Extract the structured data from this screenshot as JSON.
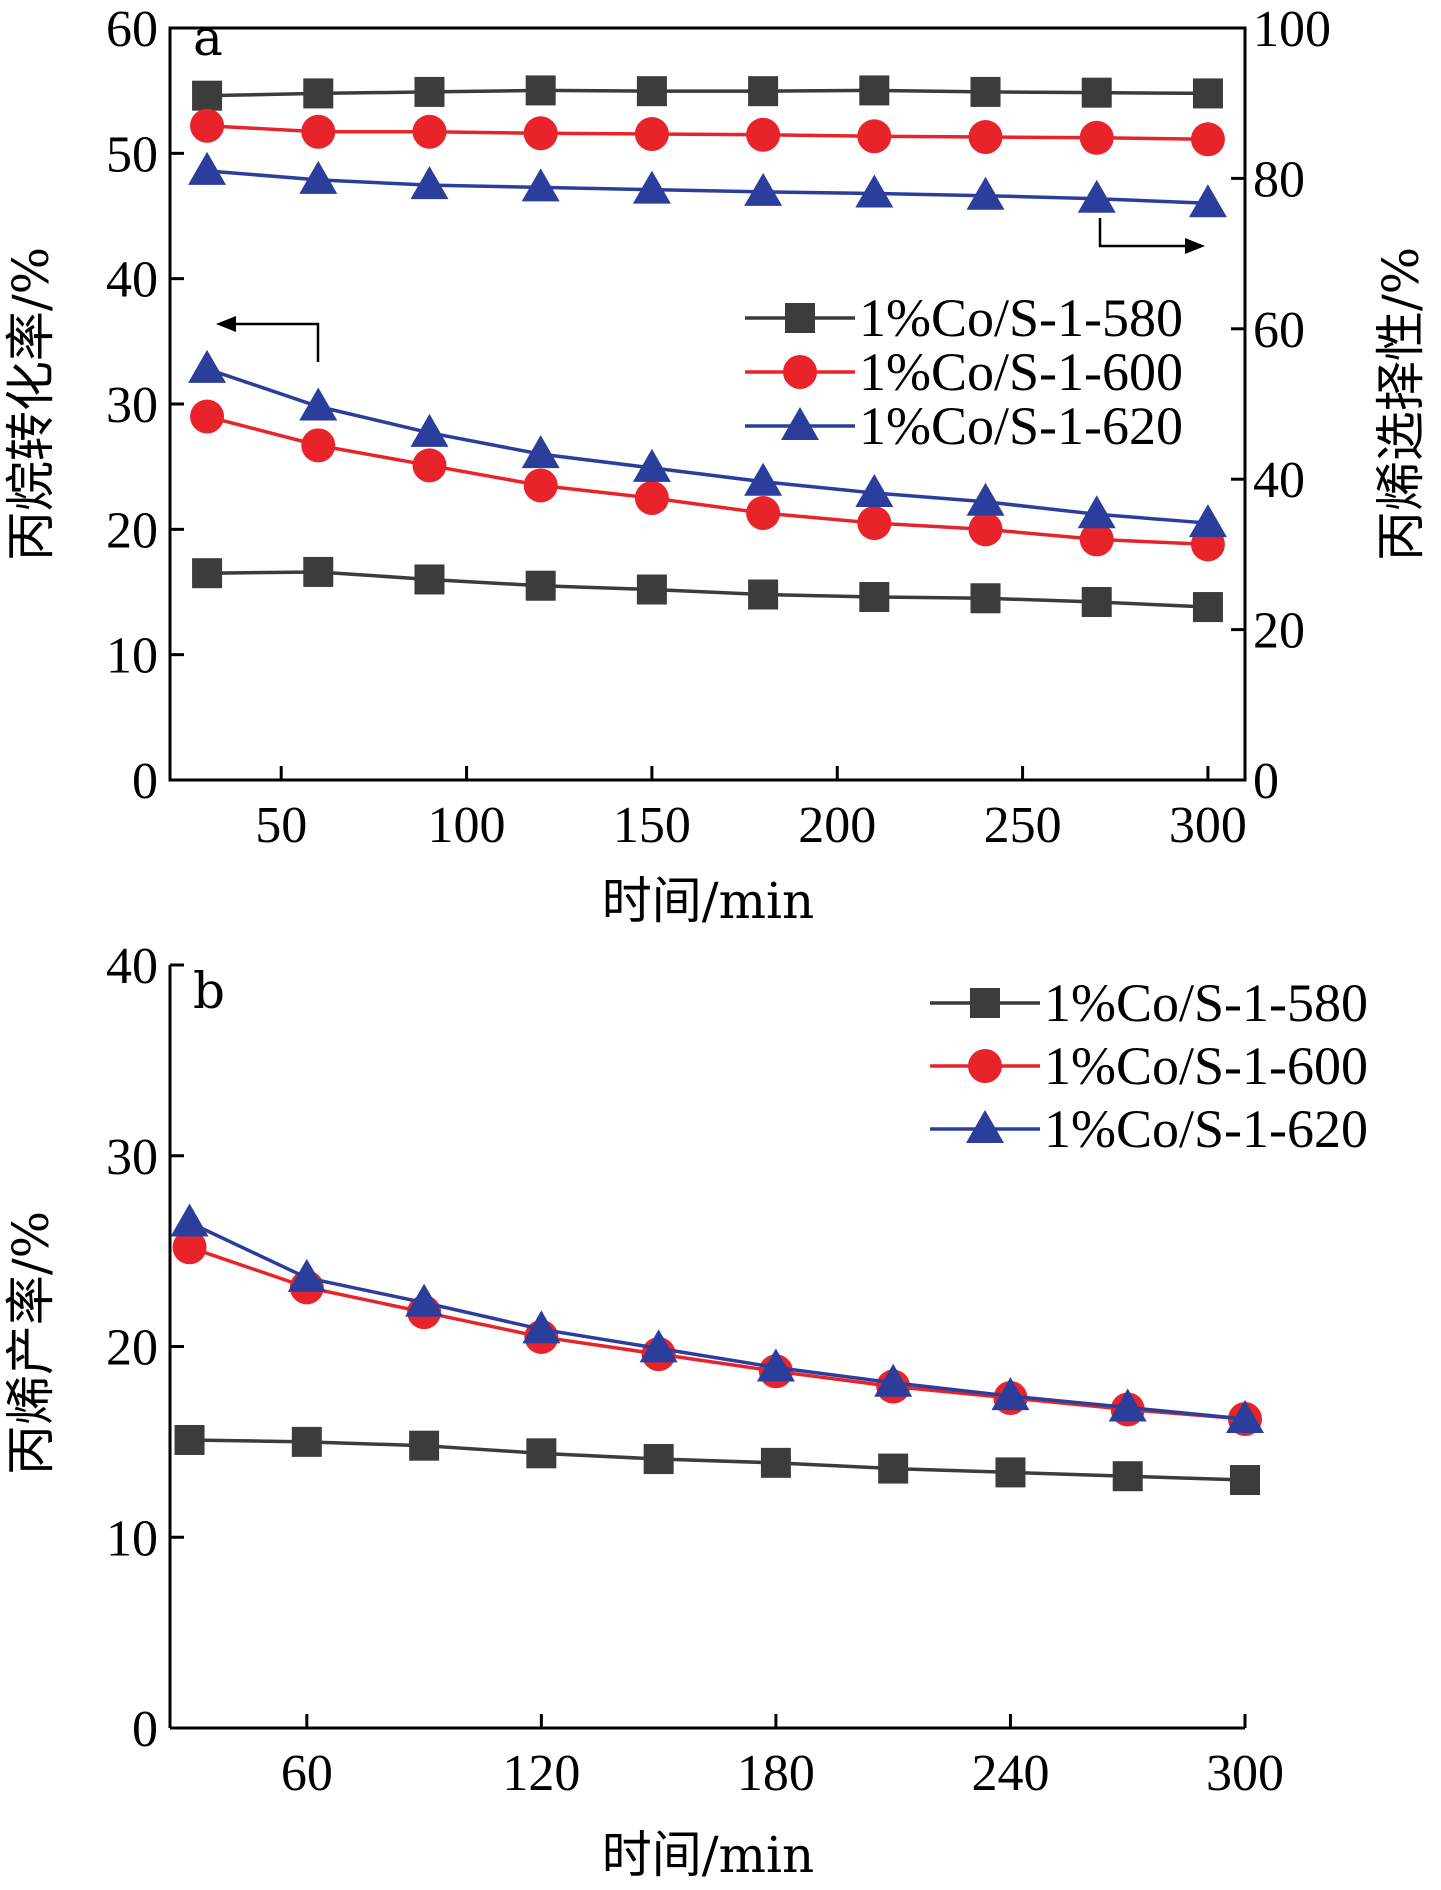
{
  "chart_data": [
    {
      "type": "line",
      "panel_label": "a",
      "xlabel": "时间/min",
      "ylabel": "丙烷转化率/%",
      "y2label": "丙烯选择性/%",
      "xlim": [
        20,
        310
      ],
      "ylim": [
        0,
        60
      ],
      "y2lim": [
        0,
        100
      ],
      "xticks": [
        50,
        100,
        150,
        200,
        250,
        300
      ],
      "yticks": [
        0,
        10,
        20,
        30,
        40,
        50,
        60
      ],
      "y2ticks": [
        0,
        20,
        40,
        60,
        80,
        100
      ],
      "legend_position": "center-right",
      "x": [
        30,
        60,
        90,
        120,
        150,
        180,
        210,
        240,
        270,
        300
      ],
      "series": [
        {
          "name": "1%Co/S-1-580",
          "axis": "left",
          "color": "#3c3c3c",
          "marker": "square",
          "values": [
            16.5,
            16.6,
            16.0,
            15.5,
            15.2,
            14.8,
            14.6,
            14.5,
            14.2,
            13.8
          ]
        },
        {
          "name": "1%Co/S-1-600",
          "axis": "left",
          "color": "#e8242a",
          "marker": "circle",
          "values": [
            29.0,
            26.7,
            25.1,
            23.5,
            22.5,
            21.3,
            20.5,
            20.0,
            19.2,
            18.8
          ]
        },
        {
          "name": "1%Co/S-1-620",
          "axis": "left",
          "color": "#2c3e9c",
          "marker": "triangle",
          "values": [
            32.8,
            29.8,
            27.7,
            26.0,
            24.9,
            23.8,
            22.9,
            22.2,
            21.2,
            20.5
          ]
        },
        {
          "name": "1%Co/S-1-580",
          "axis": "right",
          "color": "#3c3c3c",
          "marker": "square",
          "values": [
            91.0,
            91.3,
            91.5,
            91.7,
            91.6,
            91.6,
            91.7,
            91.5,
            91.4,
            91.3
          ]
        },
        {
          "name": "1%Co/S-1-600",
          "axis": "right",
          "color": "#e8242a",
          "marker": "circle",
          "values": [
            87.0,
            86.2,
            86.2,
            86.0,
            85.9,
            85.8,
            85.6,
            85.5,
            85.4,
            85.2
          ]
        },
        {
          "name": "1%Co/S-1-620",
          "axis": "right",
          "color": "#2c3e9c",
          "marker": "triangle",
          "values": [
            81.0,
            79.8,
            79.1,
            78.8,
            78.5,
            78.2,
            78.0,
            77.7,
            77.3,
            76.7
          ]
        }
      ]
    },
    {
      "type": "line",
      "panel_label": "b",
      "xlabel": "时间/min",
      "ylabel": "丙烯产率/%",
      "xlim": [
        25,
        300
      ],
      "ylim": [
        0,
        40
      ],
      "xticks": [
        60,
        120,
        180,
        240,
        300
      ],
      "yticks": [
        0,
        10,
        20,
        30,
        40
      ],
      "legend_position": "top-right",
      "x": [
        30,
        60,
        90,
        120,
        150,
        180,
        210,
        240,
        270,
        300
      ],
      "series": [
        {
          "name": "1%Co/S-1-580",
          "color": "#3c3c3c",
          "marker": "square",
          "values": [
            15.1,
            15.0,
            14.8,
            14.4,
            14.1,
            13.9,
            13.6,
            13.4,
            13.2,
            13.0
          ]
        },
        {
          "name": "1%Co/S-1-600",
          "color": "#e8242a",
          "marker": "circle",
          "values": [
            25.2,
            23.1,
            21.8,
            20.5,
            19.6,
            18.7,
            17.9,
            17.3,
            16.7,
            16.2
          ]
        },
        {
          "name": "1%Co/S-1-620",
          "color": "#2c3e9c",
          "marker": "triangle",
          "values": [
            26.5,
            23.6,
            22.3,
            20.9,
            19.9,
            18.9,
            18.1,
            17.4,
            16.8,
            16.2
          ]
        }
      ]
    }
  ]
}
